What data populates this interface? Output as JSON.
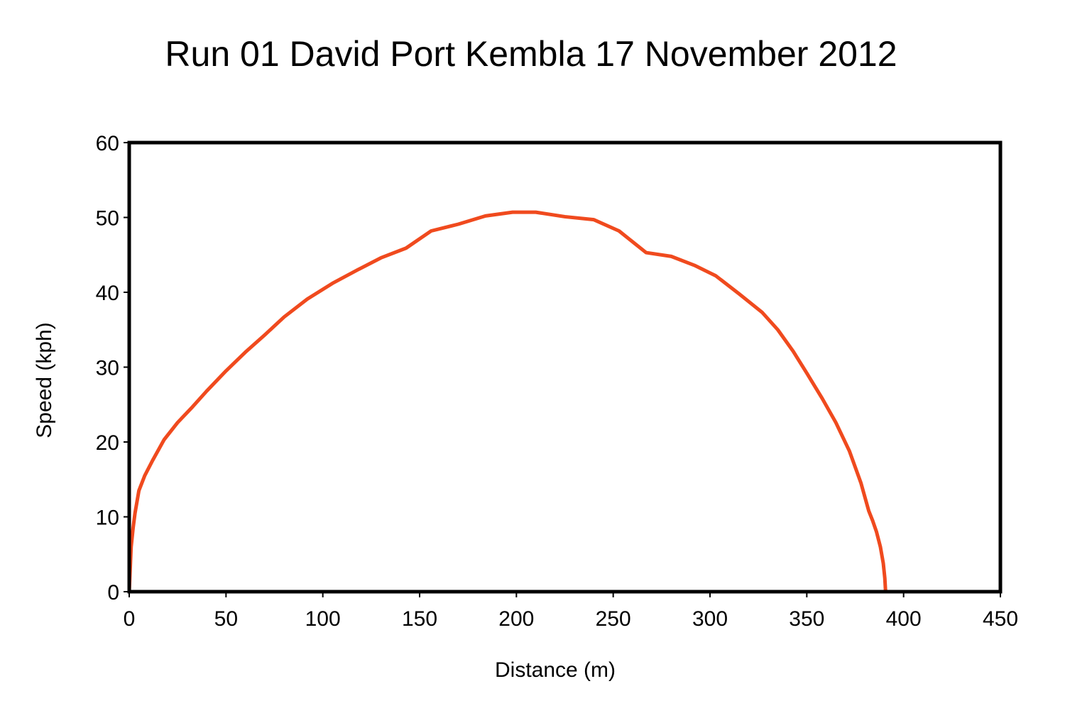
{
  "chart_data": {
    "type": "line",
    "title": "Run 01 David Port Kembla 17 November 2012",
    "xlabel": "Distance (m)",
    "ylabel": "Speed (kph)",
    "xlim": [
      0,
      450
    ],
    "ylim": [
      0,
      60
    ],
    "x_ticks": [
      0,
      50,
      100,
      150,
      200,
      250,
      300,
      350,
      400,
      450
    ],
    "y_ticks": [
      0,
      10,
      20,
      30,
      40,
      50,
      60
    ],
    "x_tick_labels": [
      "0",
      "50",
      "100",
      "150",
      "200",
      "250",
      "300",
      "350",
      "400",
      "450"
    ],
    "y_tick_labels": [
      "0",
      "10",
      "20",
      "30",
      "40",
      "50",
      "60"
    ],
    "grid": false,
    "legend": "none",
    "series": [
      {
        "color": "#f04a1e",
        "x": [
          0,
          0.5,
          1,
          2,
          3,
          5,
          8,
          12,
          18,
          25,
          32,
          40,
          50,
          60,
          70,
          80,
          92,
          105,
          118,
          130,
          143,
          156,
          170,
          184,
          198,
          210,
          225,
          240,
          253,
          267,
          280,
          292,
          303,
          315,
          327,
          335,
          343,
          350,
          358,
          365,
          372,
          378,
          382,
          384,
          386,
          388,
          389.5,
          390.3,
          390.7
        ],
        "y": [
          0,
          3,
          6,
          8.5,
          10.5,
          13.5,
          15.5,
          17.5,
          20.3,
          22.6,
          24.5,
          26.8,
          29.5,
          32,
          34.3,
          36.7,
          39.1,
          41.2,
          43,
          44.6,
          45.9,
          48.2,
          49.1,
          50.2,
          50.7,
          50.7,
          50.1,
          49.7,
          48.2,
          45.3,
          44.8,
          43.6,
          42.2,
          39.8,
          37.3,
          35,
          32.1,
          29.2,
          25.8,
          22.6,
          18.8,
          14.5,
          10.8,
          9.5,
          8,
          6,
          3.8,
          1.8,
          0
        ]
      }
    ]
  }
}
